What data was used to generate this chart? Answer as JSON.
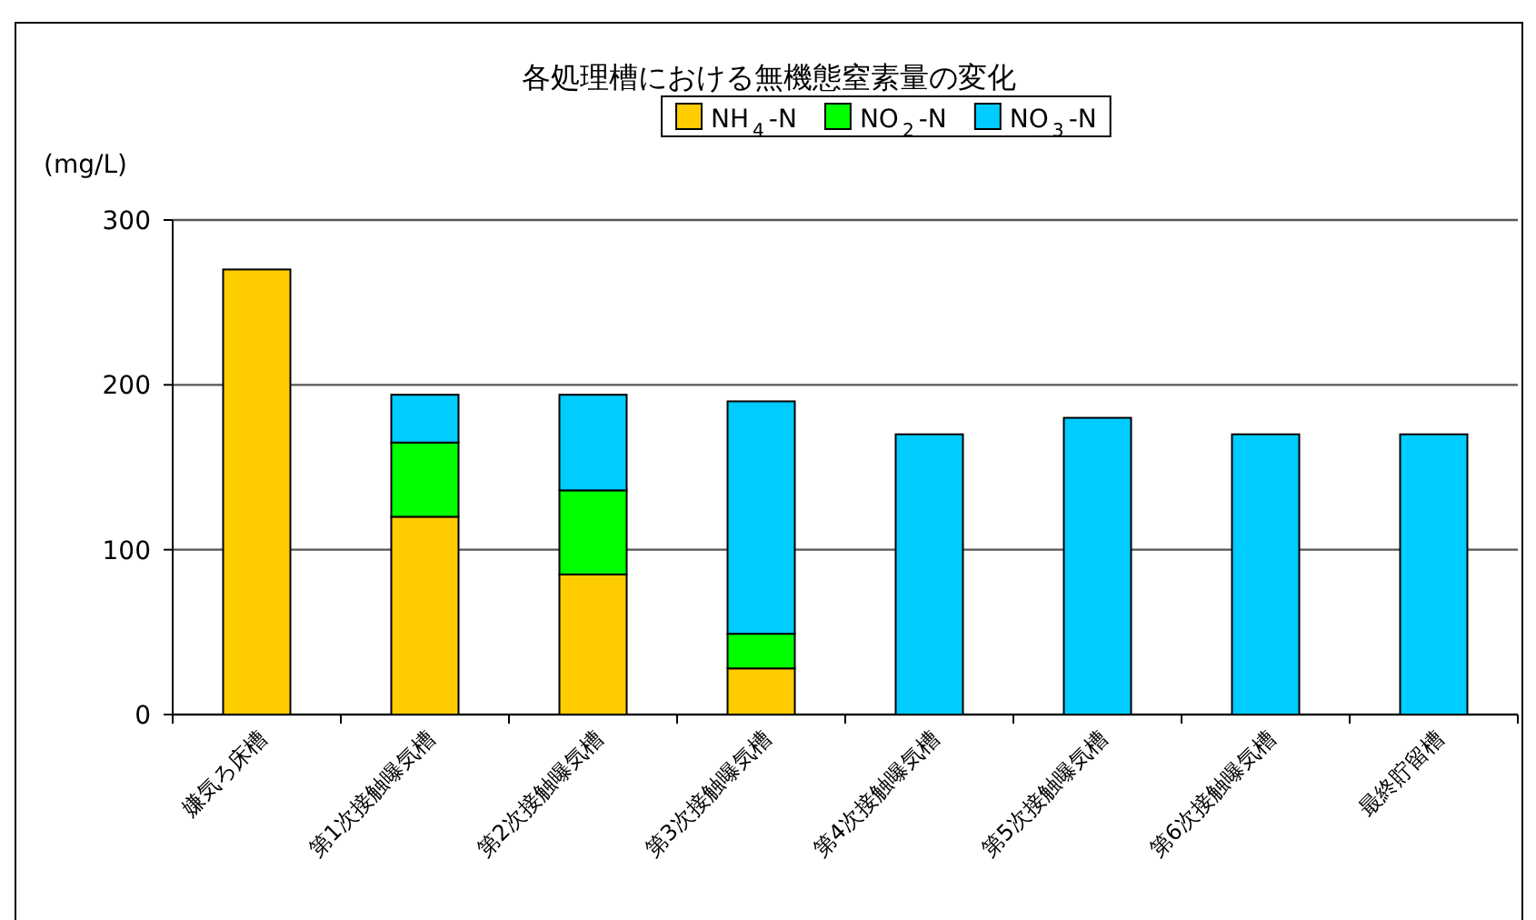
{
  "chart_data": {
    "type": "bar",
    "title": "各処理槽における無機態窒素量の変化",
    "ylabel": "(mg/L)",
    "stacked": true,
    "legend": "top",
    "grid": "y",
    "categories": [
      "嫌気ろ床槽",
      "第1次接触曝気槽",
      "第2次接触曝気槽",
      "第3次接触曝気槽",
      "第4次接触曝気槽",
      "第5次接触曝気槽",
      "第6次接触曝気槽",
      "最終貯留槽"
    ],
    "series": [
      {
        "name": "NH$_{4}$-N",
        "color": "#ffcc00",
        "values": [
          270,
          120,
          85,
          28,
          null,
          null,
          null,
          null
        ]
      },
      {
        "name": "NO$_{2}$-N",
        "color": "#00ff00",
        "values": [
          null,
          45,
          51,
          21,
          null,
          null,
          null,
          null
        ]
      },
      {
        "name": "NO$_{3}$-N",
        "color": "#00ccff",
        "values": [
          null,
          29,
          58,
          141,
          170,
          180,
          170,
          170
        ]
      }
    ],
    "ylim": [
      0,
      300
    ],
    "yticks": [
      0,
      100,
      200,
      300
    ]
  }
}
